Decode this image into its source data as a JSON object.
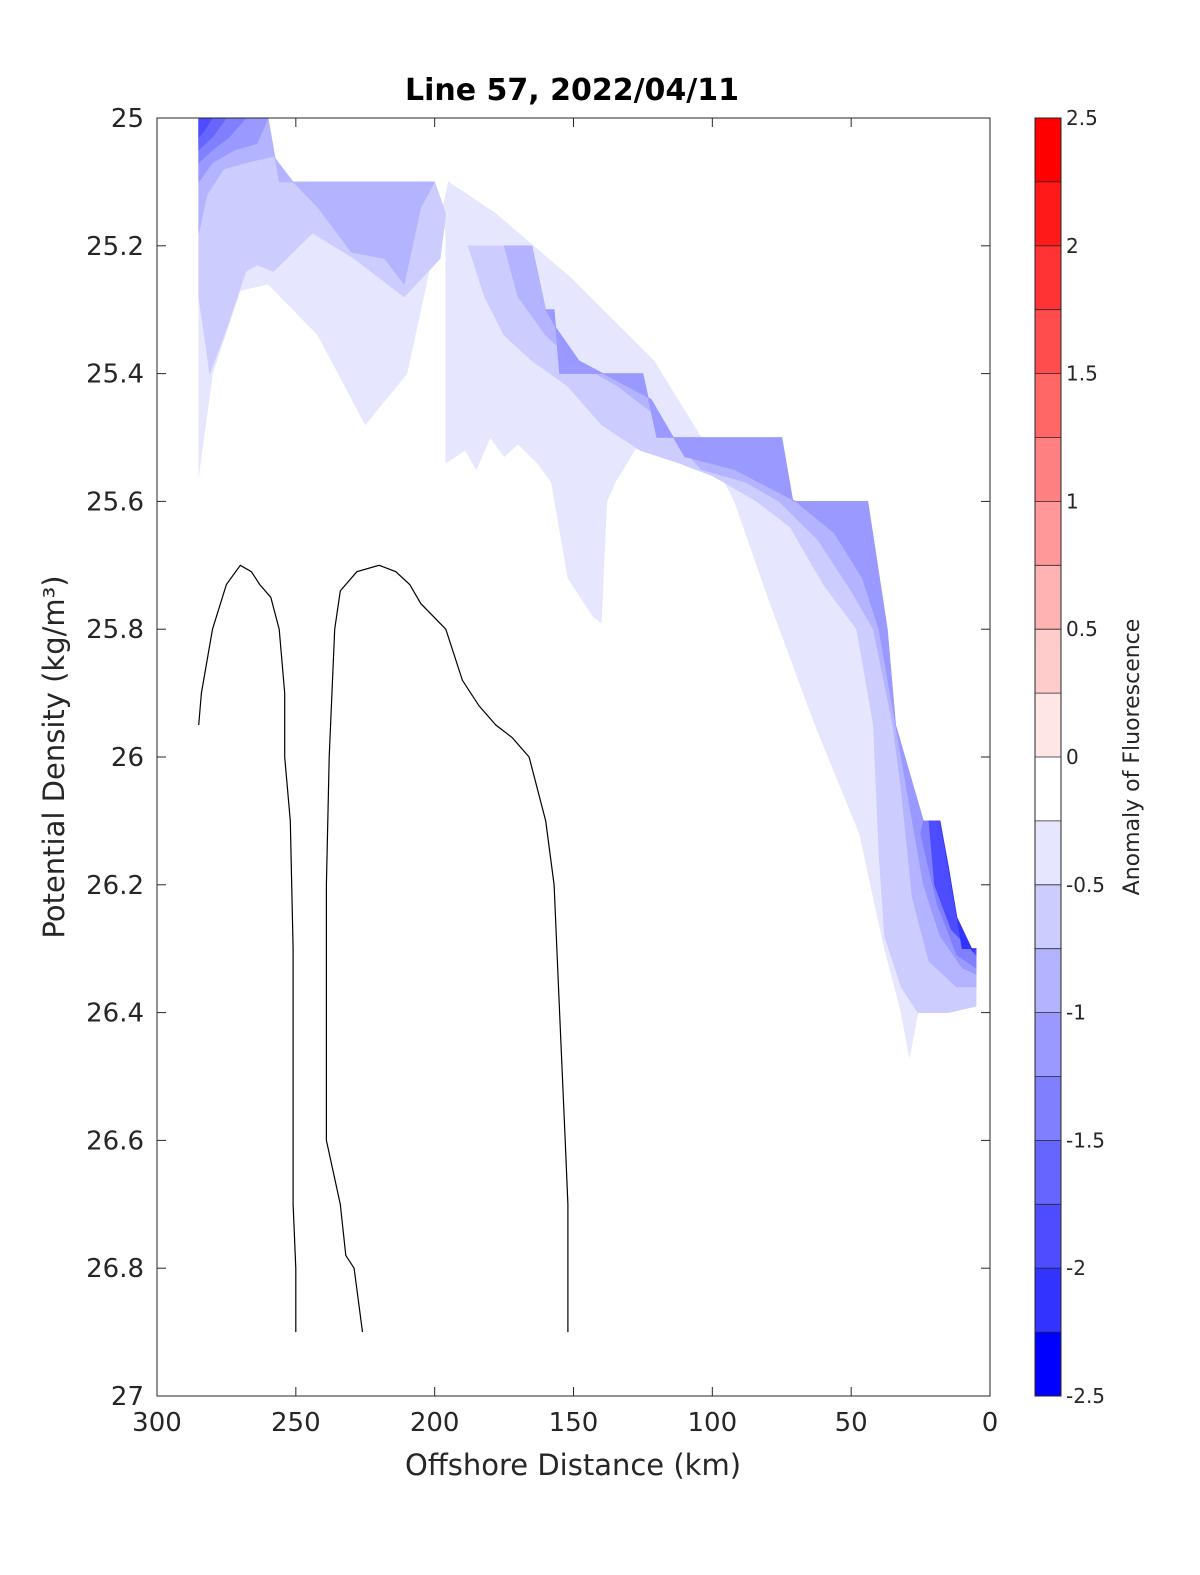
{
  "chart_data": {
    "type": "contour",
    "title": "Line 57, 2022/04/11",
    "xlabel": "Offshore Distance (km)",
    "ylabel": "Potential Density (kg/m³)",
    "xlim": [
      300,
      0
    ],
    "ylim": [
      25,
      27
    ],
    "y_reversed": true,
    "x_reversed": true,
    "xticks": [
      "300",
      "250",
      "200",
      "150",
      "100",
      "50",
      "0"
    ],
    "yticks": [
      "25",
      "25.2",
      "25.4",
      "25.6",
      "25.8",
      "26",
      "26.2",
      "26.4",
      "26.6",
      "26.8",
      "27"
    ],
    "colorbar": {
      "label": "Anomaly of Fluorescence",
      "range": [
        -2.5,
        2.5
      ],
      "ticks": [
        "2.5",
        "2",
        "1.5",
        "1",
        "0.5",
        "0",
        "-0.5",
        "-1",
        "-1.5",
        "-2",
        "-2.5"
      ],
      "levels": [
        {
          "from": 2.25,
          "to": 2.5,
          "color": "#ff0000"
        },
        {
          "from": 2.0,
          "to": 2.25,
          "color": "#ff1919"
        },
        {
          "from": 1.75,
          "to": 2.0,
          "color": "#ff3333"
        },
        {
          "from": 1.5,
          "to": 1.75,
          "color": "#ff4d4d"
        },
        {
          "from": 1.25,
          "to": 1.5,
          "color": "#ff6666"
        },
        {
          "from": 1.0,
          "to": 1.25,
          "color": "#ff8080"
        },
        {
          "from": 0.75,
          "to": 1.0,
          "color": "#ff9999"
        },
        {
          "from": 0.5,
          "to": 0.75,
          "color": "#ffb3b3"
        },
        {
          "from": 0.25,
          "to": 0.5,
          "color": "#ffcccc"
        },
        {
          "from": 0.0,
          "to": 0.25,
          "color": "#ffe6e6"
        },
        {
          "from": -0.25,
          "to": 0.0,
          "color": "#ffffff"
        },
        {
          "from": -0.5,
          "to": -0.25,
          "color": "#e6e6ff"
        },
        {
          "from": -0.75,
          "to": -0.5,
          "color": "#ccccff"
        },
        {
          "from": -1.0,
          "to": -0.75,
          "color": "#b3b3ff"
        },
        {
          "from": -1.25,
          "to": -1.0,
          "color": "#9999ff"
        },
        {
          "from": -1.5,
          "to": -1.25,
          "color": "#8080ff"
        },
        {
          "from": -1.75,
          "to": -1.5,
          "color": "#6666ff"
        },
        {
          "from": -2.0,
          "to": -1.75,
          "color": "#4d4dff"
        },
        {
          "from": -2.25,
          "to": -2.0,
          "color": "#3333ff"
        },
        {
          "from": -2.5,
          "to": -2.25,
          "color": "#0000ff"
        }
      ]
    },
    "filled_regions": [
      {
        "level": -0.5,
        "color": "#e6e6ff",
        "points": [
          [
            285,
            25.0
          ],
          [
            260,
            25.0
          ],
          [
            256,
            25.1
          ],
          [
            200,
            25.1
          ],
          [
            196,
            25.18
          ],
          [
            196,
            25.54
          ],
          [
            189,
            25.52
          ],
          [
            185,
            25.55
          ],
          [
            180,
            25.5
          ],
          [
            175,
            25.53
          ],
          [
            170,
            25.51
          ],
          [
            163,
            25.54
          ],
          [
            158,
            25.57
          ],
          [
            152,
            25.72
          ],
          [
            143,
            25.78
          ],
          [
            140,
            25.79
          ],
          [
            138,
            25.6
          ],
          [
            135,
            25.57
          ],
          [
            128,
            25.52
          ],
          [
            123,
            25.5
          ],
          [
            75,
            25.5
          ],
          [
            71,
            25.6
          ],
          [
            44,
            25.6
          ],
          [
            37,
            25.8
          ],
          [
            34,
            25.95
          ],
          [
            24,
            26.1
          ],
          [
            18,
            26.1
          ],
          [
            10,
            26.3
          ],
          [
            5,
            26.3
          ],
          [
            5,
            26.39
          ],
          [
            15,
            26.4
          ],
          [
            26,
            26.4
          ],
          [
            29,
            26.47
          ],
          [
            32,
            26.4
          ],
          [
            38,
            26.3
          ],
          [
            47,
            26.12
          ],
          [
            63,
            25.95
          ],
          [
            80,
            25.75
          ],
          [
            92,
            25.6
          ],
          [
            104,
            25.5
          ],
          [
            121,
            25.38
          ],
          [
            151,
            25.25
          ],
          [
            178,
            25.15
          ],
          [
            195,
            25.1
          ],
          [
            210,
            25.4
          ],
          [
            225,
            25.48
          ],
          [
            242,
            25.34
          ],
          [
            260,
            25.26
          ],
          [
            270,
            25.27
          ],
          [
            280,
            25.4
          ],
          [
            285,
            25.56
          ]
        ]
      },
      {
        "level": -0.75,
        "color": "#ccccff",
        "points": [
          [
            285,
            25.0
          ],
          [
            260,
            25.0
          ],
          [
            256,
            25.1
          ],
          [
            200,
            25.1
          ],
          [
            196,
            25.15
          ],
          [
            198,
            25.22
          ],
          [
            211,
            25.28
          ],
          [
            229,
            25.22
          ],
          [
            244,
            25.18
          ],
          [
            258,
            25.24
          ],
          [
            264,
            25.23
          ],
          [
            268,
            25.24
          ],
          [
            275,
            25.33
          ],
          [
            281,
            25.4
          ],
          [
            285,
            25.28
          ]
        ]
      },
      {
        "level": -0.75,
        "color": "#ccccff",
        "points": [
          [
            188,
            25.2
          ],
          [
            165,
            25.2
          ],
          [
            160,
            25.3
          ],
          [
            157,
            25.3
          ],
          [
            155,
            25.4
          ],
          [
            125,
            25.4
          ],
          [
            120,
            25.5
          ],
          [
            75,
            25.5
          ],
          [
            71,
            25.6
          ],
          [
            44,
            25.6
          ],
          [
            37,
            25.8
          ],
          [
            34,
            25.95
          ],
          [
            24,
            26.1
          ],
          [
            18,
            26.1
          ],
          [
            10,
            26.3
          ],
          [
            5,
            26.3
          ],
          [
            5,
            26.39
          ],
          [
            15,
            26.4
          ],
          [
            26,
            26.4
          ],
          [
            32,
            26.36
          ],
          [
            38,
            26.28
          ],
          [
            40,
            26.15
          ],
          [
            42,
            25.95
          ],
          [
            48,
            25.8
          ],
          [
            60,
            25.73
          ],
          [
            72,
            25.64
          ],
          [
            84,
            25.6
          ],
          [
            100,
            25.56
          ],
          [
            112,
            25.54
          ],
          [
            126,
            25.52
          ],
          [
            140,
            25.48
          ],
          [
            152,
            25.42
          ],
          [
            165,
            25.38
          ],
          [
            175,
            25.34
          ],
          [
            182,
            25.28
          ]
        ]
      },
      {
        "level": -1.0,
        "color": "#b3b3ff",
        "points": [
          [
            285,
            25.0
          ],
          [
            260,
            25.0
          ],
          [
            256,
            25.1
          ],
          [
            200,
            25.1
          ],
          [
            205,
            25.14
          ],
          [
            211,
            25.26
          ],
          [
            218,
            25.22
          ],
          [
            230,
            25.21
          ],
          [
            242,
            25.14
          ],
          [
            251,
            25.1
          ],
          [
            258,
            25.06
          ],
          [
            268,
            25.07
          ],
          [
            276,
            25.08
          ],
          [
            282,
            25.12
          ],
          [
            285,
            25.18
          ]
        ]
      },
      {
        "level": -1.0,
        "color": "#b3b3ff",
        "points": [
          [
            175,
            25.2
          ],
          [
            165,
            25.2
          ],
          [
            160,
            25.3
          ],
          [
            157,
            25.3
          ],
          [
            155,
            25.4
          ],
          [
            125,
            25.4
          ],
          [
            120,
            25.5
          ],
          [
            75,
            25.5
          ],
          [
            71,
            25.6
          ],
          [
            44,
            25.6
          ],
          [
            37,
            25.8
          ],
          [
            34,
            25.95
          ],
          [
            24,
            26.1
          ],
          [
            18,
            26.1
          ],
          [
            10,
            26.3
          ],
          [
            5,
            26.3
          ],
          [
            5,
            26.36
          ],
          [
            12,
            26.36
          ],
          [
            22,
            26.32
          ],
          [
            28,
            26.22
          ],
          [
            32,
            26.05
          ],
          [
            35,
            25.95
          ],
          [
            42,
            25.8
          ],
          [
            50,
            25.74
          ],
          [
            62,
            25.66
          ],
          [
            76,
            25.6
          ],
          [
            88,
            25.57
          ],
          [
            104,
            25.55
          ],
          [
            122,
            25.46
          ],
          [
            134,
            25.42
          ],
          [
            150,
            25.38
          ],
          [
            160,
            25.34
          ],
          [
            170,
            25.28
          ]
        ]
      },
      {
        "level": -1.25,
        "color": "#9999ff",
        "points": [
          [
            285,
            25.0
          ],
          [
            260,
            25.0
          ],
          [
            264,
            25.04
          ],
          [
            272,
            25.05
          ],
          [
            280,
            25.07
          ],
          [
            285,
            25.1
          ]
        ]
      },
      {
        "level": -1.25,
        "color": "#9999ff",
        "points": [
          [
            160,
            25.3
          ],
          [
            157,
            25.3
          ],
          [
            155,
            25.4
          ],
          [
            125,
            25.4
          ],
          [
            120,
            25.5
          ],
          [
            75,
            25.5
          ],
          [
            71,
            25.6
          ],
          [
            44,
            25.6
          ],
          [
            37,
            25.8
          ],
          [
            34,
            25.95
          ],
          [
            24,
            26.1
          ],
          [
            18,
            26.1
          ],
          [
            10,
            26.3
          ],
          [
            5,
            26.3
          ],
          [
            5,
            26.34
          ],
          [
            10,
            26.33
          ],
          [
            18,
            26.28
          ],
          [
            24,
            26.2
          ],
          [
            30,
            26.05
          ],
          [
            34,
            25.95
          ],
          [
            40,
            25.8
          ],
          [
            46,
            25.72
          ],
          [
            56,
            25.65
          ],
          [
            70,
            25.6
          ],
          [
            92,
            25.55
          ],
          [
            110,
            25.53
          ],
          [
            122,
            25.44
          ],
          [
            135,
            25.41
          ],
          [
            148,
            25.38
          ],
          [
            156,
            25.33
          ]
        ]
      },
      {
        "level": -1.5,
        "color": "#8080ff",
        "points": [
          [
            285,
            25.0
          ],
          [
            268,
            25.0
          ],
          [
            274,
            25.03
          ],
          [
            280,
            25.05
          ],
          [
            285,
            25.07
          ]
        ]
      },
      {
        "level": -1.5,
        "color": "#8080ff",
        "points": [
          [
            24,
            26.1
          ],
          [
            18,
            26.1
          ],
          [
            10,
            26.3
          ],
          [
            5,
            26.3
          ],
          [
            5,
            26.33
          ],
          [
            12,
            26.31
          ],
          [
            19,
            26.23
          ],
          [
            25,
            26.12
          ]
        ]
      },
      {
        "level": -1.75,
        "color": "#6666ff",
        "points": [
          [
            285,
            25.0
          ],
          [
            275,
            25.0
          ],
          [
            280,
            25.03
          ],
          [
            285,
            25.05
          ]
        ]
      },
      {
        "level": -2.0,
        "color": "#4d4dff",
        "points": [
          [
            285,
            25.0
          ],
          [
            280,
            25.0
          ],
          [
            283,
            25.02
          ],
          [
            285,
            25.03
          ]
        ]
      },
      {
        "level": -2.0,
        "color": "#4d4dff",
        "points": [
          [
            22,
            26.1
          ],
          [
            18,
            26.1
          ],
          [
            10,
            26.3
          ],
          [
            5,
            26.3
          ],
          [
            5,
            26.31
          ],
          [
            14,
            26.27
          ],
          [
            20,
            26.2
          ]
        ]
      },
      {
        "level": -2.25,
        "color": "#3333ff",
        "points": [
          [
            18,
            26.1
          ],
          [
            15,
            26.17
          ],
          [
            10,
            26.3
          ],
          [
            5,
            26.3
          ],
          [
            6,
            26.305
          ],
          [
            12,
            26.25
          ]
        ]
      }
    ],
    "contour_lines": [
      {
        "level": 0,
        "points": [
          [
            285,
            25.95
          ],
          [
            284,
            25.9
          ],
          [
            280,
            25.8
          ],
          [
            275,
            25.73
          ],
          [
            270,
            25.7
          ],
          [
            266,
            25.71
          ],
          [
            263,
            25.73
          ],
          [
            259,
            25.75
          ],
          [
            256,
            25.8
          ],
          [
            254,
            25.9
          ],
          [
            254,
            26.0
          ],
          [
            252,
            26.1
          ],
          [
            251,
            26.3
          ],
          [
            251,
            26.5
          ],
          [
            251,
            26.7
          ],
          [
            250,
            26.8
          ],
          [
            250,
            26.9
          ]
        ]
      },
      {
        "level": 0,
        "points": [
          [
            226,
            26.9
          ],
          [
            229,
            26.8
          ],
          [
            232,
            26.78
          ],
          [
            234,
            26.7
          ],
          [
            239,
            26.6
          ],
          [
            239,
            26.5
          ],
          [
            239,
            26.3
          ],
          [
            239,
            26.2
          ],
          [
            238,
            26.0
          ],
          [
            236,
            25.8
          ],
          [
            234,
            25.74
          ],
          [
            228,
            25.71
          ],
          [
            220,
            25.7
          ],
          [
            214,
            25.71
          ],
          [
            209,
            25.73
          ],
          [
            205,
            25.76
          ],
          [
            196,
            25.8
          ],
          [
            190,
            25.88
          ],
          [
            184,
            25.92
          ],
          [
            178,
            25.95
          ],
          [
            172,
            25.97
          ],
          [
            166,
            26.0
          ],
          [
            160,
            26.1
          ],
          [
            157,
            26.2
          ],
          [
            155,
            26.4
          ],
          [
            153,
            26.6
          ],
          [
            152,
            26.7
          ],
          [
            152,
            26.8
          ],
          [
            152,
            26.9
          ]
        ]
      }
    ]
  }
}
